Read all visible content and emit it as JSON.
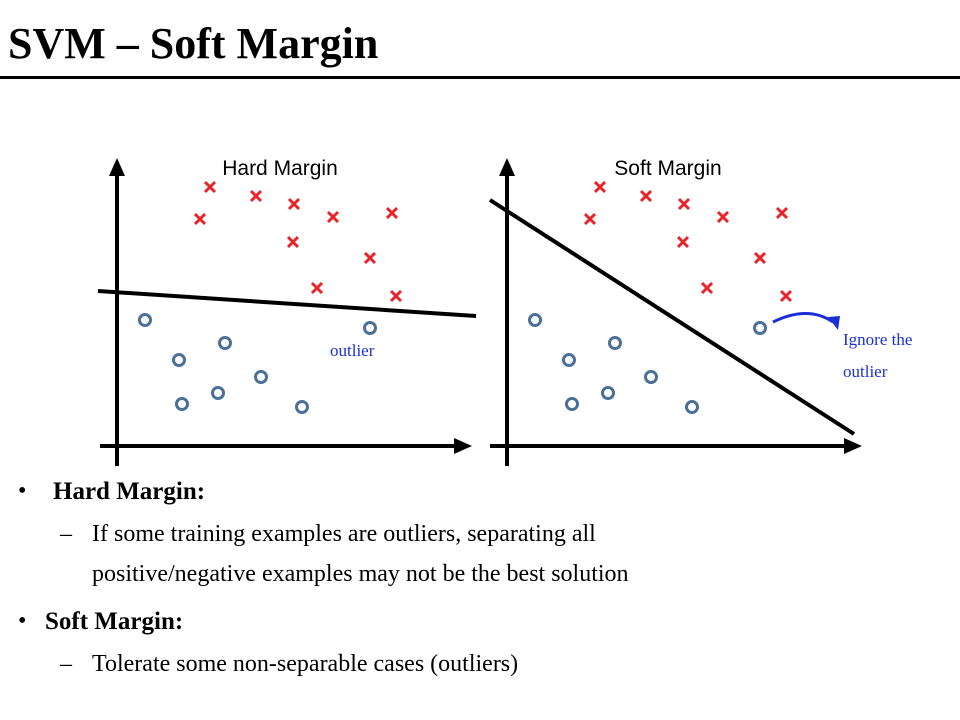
{
  "slide": {
    "title": "SVM – Soft Margin"
  },
  "diagram": {
    "left_panel_title": "Hard Margin",
    "right_panel_title": "Soft Margin",
    "outlier_label": "outlier",
    "ignore_note_line1": "Ignore the",
    "ignore_note_line2": "outlier",
    "colors": {
      "negative_marker": "#e8232a",
      "positive_marker": "#4a6f98",
      "annotation": "#1a2fd6",
      "axis": "#000000"
    }
  },
  "bullets": {
    "hard": {
      "heading": "Hard Margin:",
      "dash": "–",
      "sub_line1": "If some training examples are outliers, separating all",
      "sub_line2": "positive/negative examples may not be the best solution"
    },
    "soft": {
      "heading": "Soft Margin:",
      "dash": "–",
      "sub_line1": "Tolerate some non-separable cases (outliers)"
    },
    "bullet_char": "•"
  }
}
